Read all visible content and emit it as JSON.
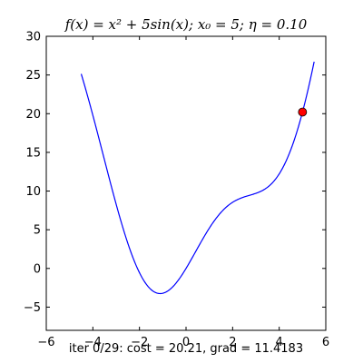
{
  "chart_data": {
    "type": "line",
    "title": "f(x) = x² + 5sin(x); x₀ = 5; η = 0.10",
    "xlabel": "iter 0/29: cost = 20.21, grad = 11.4183",
    "ylabel": "",
    "xlim": [
      -6,
      6
    ],
    "ylim": [
      -8,
      30
    ],
    "xticks": [
      -6,
      -4,
      -2,
      0,
      2,
      4,
      6
    ],
    "yticks": [
      -5,
      0,
      5,
      10,
      15,
      20,
      25,
      30
    ],
    "xtick_labels": [
      "−6",
      "−4",
      "−2",
      "0",
      "2",
      "4",
      "6"
    ],
    "ytick_labels": [
      "−5",
      "0",
      "5",
      "10",
      "15",
      "20",
      "25",
      "30"
    ],
    "grid": false,
    "legend": "none",
    "series": [
      {
        "function": "x^2 + 5*sin(x)",
        "x_range": [
          -4.5,
          5.5
        ],
        "color": "#0000ff"
      }
    ],
    "marker": {
      "x": 5,
      "y": 20.21,
      "color": "#ff0000"
    }
  }
}
